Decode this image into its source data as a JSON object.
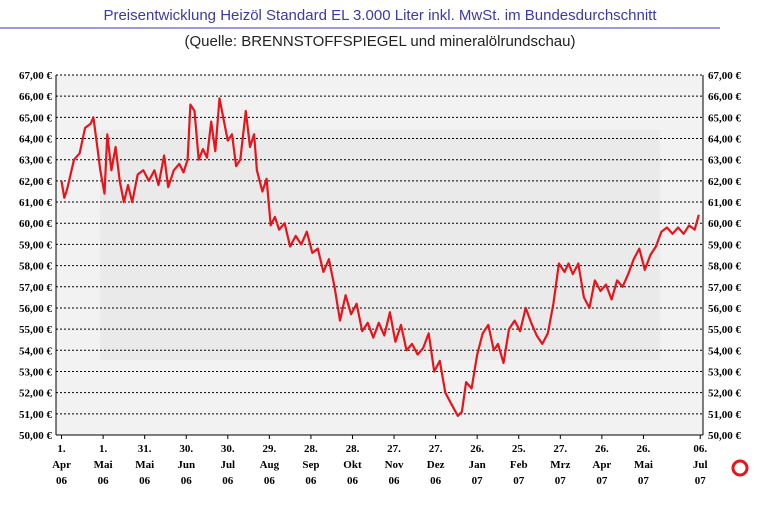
{
  "chart_data": {
    "type": "line",
    "title": "Preisentwicklung Heizöl Standard EL 3.000 Liter inkl. MwSt. im Bundesdurchschnitt",
    "subtitle": "(Quelle: BRENNSTOFFSPIEGEL und mineralölrundschau)",
    "color": "#e8141b",
    "x": [
      "2006-04-01",
      "2006-04-03",
      "2006-04-05",
      "2006-04-10",
      "2006-04-14",
      "2006-04-18",
      "2006-04-22",
      "2006-04-24",
      "2006-04-27",
      "2006-04-29",
      "2006-05-02",
      "2006-05-04",
      "2006-05-07",
      "2006-05-10",
      "2006-05-13",
      "2006-05-16",
      "2006-05-19",
      "2006-05-22",
      "2006-05-26",
      "2006-05-30",
      "2006-06-03",
      "2006-06-07",
      "2006-06-10",
      "2006-06-14",
      "2006-06-17",
      "2006-06-21",
      "2006-06-25",
      "2006-06-28",
      "2006-07-01",
      "2006-07-03",
      "2006-07-06",
      "2006-07-09",
      "2006-07-12",
      "2006-07-15",
      "2006-07-18",
      "2006-07-21",
      "2006-07-24",
      "2006-07-27",
      "2006-07-30",
      "2006-08-02",
      "2006-08-05",
      "2006-08-08",
      "2006-08-12",
      "2006-08-15",
      "2006-08-18",
      "2006-08-20",
      "2006-08-24",
      "2006-08-27",
      "2006-08-30",
      "2006-09-02",
      "2006-09-05",
      "2006-09-09",
      "2006-09-13",
      "2006-09-17",
      "2006-09-21",
      "2006-09-25",
      "2006-09-29",
      "2006-10-03",
      "2006-10-07",
      "2006-10-11",
      "2006-10-15",
      "2006-10-19",
      "2006-10-23",
      "2006-10-27",
      "2006-10-31",
      "2006-11-04",
      "2006-11-08",
      "2006-11-12",
      "2006-11-16",
      "2006-11-20",
      "2006-11-24",
      "2006-11-28",
      "2006-12-02",
      "2006-12-06",
      "2006-12-10",
      "2006-12-14",
      "2006-12-18",
      "2006-12-22",
      "2006-12-26",
      "2006-12-30",
      "2007-01-03",
      "2007-01-07",
      "2007-01-12",
      "2007-01-15",
      "2007-01-18",
      "2007-01-22",
      "2007-01-26",
      "2007-01-30",
      "2007-02-03",
      "2007-02-07",
      "2007-02-10",
      "2007-02-14",
      "2007-02-18",
      "2007-02-22",
      "2007-02-26",
      "2007-03-02",
      "2007-03-06",
      "2007-03-10",
      "2007-03-14",
      "2007-03-18",
      "2007-03-22",
      "2007-03-26",
      "2007-03-30",
      "2007-04-02",
      "2007-04-05",
      "2007-04-09",
      "2007-04-13",
      "2007-04-17",
      "2007-04-21",
      "2007-04-25",
      "2007-04-29",
      "2007-05-03",
      "2007-05-07",
      "2007-05-11",
      "2007-05-15",
      "2007-05-19",
      "2007-05-23",
      "2007-05-27",
      "2007-05-31",
      "2007-06-04",
      "2007-06-08",
      "2007-06-12",
      "2007-06-16",
      "2007-06-20",
      "2007-06-24",
      "2007-06-28",
      "2007-07-02",
      "2007-07-05"
    ],
    "values": [
      62.0,
      61.2,
      61.6,
      63.0,
      63.3,
      64.5,
      64.7,
      65.0,
      63.5,
      62.5,
      61.4,
      64.2,
      62.5,
      63.6,
      62.0,
      61.0,
      61.8,
      61.0,
      62.3,
      62.5,
      62.0,
      62.5,
      61.8,
      63.2,
      61.7,
      62.5,
      62.8,
      62.4,
      63.0,
      65.6,
      65.3,
      63.0,
      63.5,
      63.1,
      64.8,
      63.4,
      65.9,
      64.9,
      63.9,
      64.2,
      62.7,
      63.0,
      65.3,
      63.6,
      64.2,
      62.5,
      61.5,
      62.1,
      59.9,
      60.3,
      59.7,
      60.0,
      58.9,
      59.4,
      59.0,
      59.6,
      58.6,
      58.8,
      57.7,
      58.3,
      57.0,
      55.4,
      56.6,
      55.7,
      56.2,
      54.9,
      55.3,
      54.6,
      55.3,
      54.7,
      55.8,
      54.4,
      55.2,
      54.0,
      54.3,
      53.8,
      54.1,
      54.8,
      53.0,
      53.5,
      52.0,
      51.5,
      50.9,
      51.1,
      52.5,
      52.2,
      53.8,
      54.8,
      55.2,
      54.0,
      54.3,
      53.4,
      55.0,
      55.4,
      54.9,
      56.0,
      55.3,
      54.7,
      54.3,
      54.8,
      56.2,
      58.1,
      57.7,
      58.1,
      57.6,
      58.1,
      56.5,
      56.0,
      57.3,
      56.8,
      57.1,
      56.4,
      57.3,
      57.0,
      57.6,
      58.3,
      58.8,
      57.8,
      58.5,
      58.9,
      59.6,
      59.8,
      59.5,
      59.8,
      59.5,
      59.9,
      59.7,
      60.4
    ],
    "xlim": [
      "2006-03-28",
      "2007-07-08"
    ],
    "xticks": [
      {
        "value": "2006-04-01",
        "label": [
          "1.",
          "Apr",
          "06"
        ]
      },
      {
        "value": "2006-05-01",
        "label": [
          "1.",
          "Mai",
          "06"
        ]
      },
      {
        "value": "2006-05-31",
        "label": [
          "31.",
          "Mai",
          "06"
        ]
      },
      {
        "value": "2006-06-30",
        "label": [
          "30.",
          "Jun",
          "06"
        ]
      },
      {
        "value": "2006-07-30",
        "label": [
          "30.",
          "Jul",
          "06"
        ]
      },
      {
        "value": "2006-08-29",
        "label": [
          "29.",
          "Aug",
          "06"
        ]
      },
      {
        "value": "2006-09-28",
        "label": [
          "28.",
          "Sep",
          "06"
        ]
      },
      {
        "value": "2006-10-28",
        "label": [
          "28.",
          "Okt",
          "06"
        ]
      },
      {
        "value": "2006-11-27",
        "label": [
          "27.",
          "Nov",
          "06"
        ]
      },
      {
        "value": "2006-12-27",
        "label": [
          "27.",
          "Dez",
          "06"
        ]
      },
      {
        "value": "2007-01-26",
        "label": [
          "26.",
          "Jan",
          "07"
        ]
      },
      {
        "value": "2007-02-25",
        "label": [
          "25.",
          "Feb",
          "07"
        ]
      },
      {
        "value": "2007-03-27",
        "label": [
          "27.",
          "Mrz",
          "07"
        ]
      },
      {
        "value": "2007-04-26",
        "label": [
          "26.",
          "Apr",
          "07"
        ]
      },
      {
        "value": "2007-05-26",
        "label": [
          "26.",
          "Mai",
          "07"
        ]
      },
      {
        "value": "2007-07-06",
        "label": [
          "06.",
          "Jul",
          "07"
        ]
      }
    ],
    "last_xtick_color": "#e8141b",
    "ylim": [
      50,
      67
    ],
    "yticks": [
      {
        "value": 50,
        "label": "50,00 €"
      },
      {
        "value": 51,
        "label": "51,00 €"
      },
      {
        "value": 52,
        "label": "52,00 €"
      },
      {
        "value": 53,
        "label": "53,00 €"
      },
      {
        "value": 54,
        "label": "54,00 €"
      },
      {
        "value": 55,
        "label": "55,00 €"
      },
      {
        "value": 56,
        "label": "56,00 €"
      },
      {
        "value": 57,
        "label": "57,00 €"
      },
      {
        "value": 58,
        "label": "58,00 €"
      },
      {
        "value": 59,
        "label": "59,00 €"
      },
      {
        "value": 60,
        "label": "60,00 €"
      },
      {
        "value": 61,
        "label": "61,00 €"
      },
      {
        "value": 62,
        "label": "62,00 €"
      },
      {
        "value": 63,
        "label": "63,00 €"
      },
      {
        "value": 64,
        "label": "64,00 €"
      },
      {
        "value": 65,
        "label": "65,00 €"
      },
      {
        "value": 66,
        "label": "66,00 €"
      },
      {
        "value": 67,
        "label": "67,00 €"
      }
    ],
    "grid": true
  }
}
